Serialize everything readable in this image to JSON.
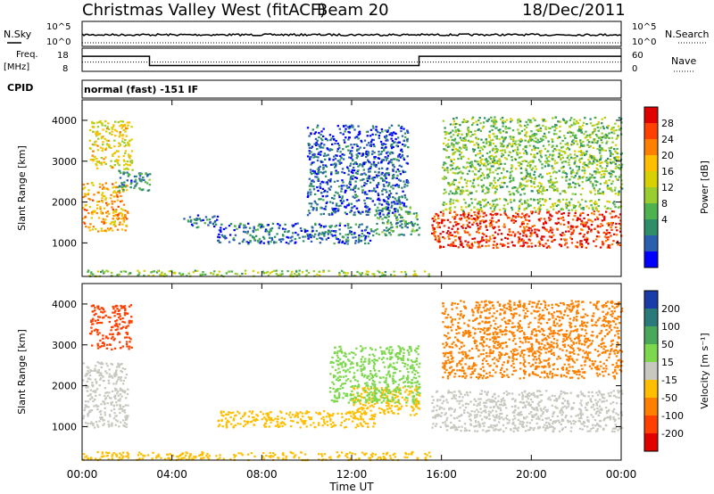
{
  "header": {
    "station": "Christmas Valley West (fitACF)",
    "beam": "Beam 20",
    "date": "18/Dec/2011"
  },
  "strips": {
    "nsky_label": "N.Sky",
    "nsky_ticks": [
      "10^5",
      "10^0"
    ],
    "nsearch_label": "N.Search",
    "nsearch_ticks": [
      "10^5",
      "10^0"
    ],
    "freq_label": "Freq.",
    "freq_unit": "[MHz]",
    "freq_ticks": [
      "18",
      "8"
    ],
    "nave_label": "Nave",
    "nave_ticks": [
      "60",
      "0"
    ],
    "cpid_label": "CPID",
    "cpid_text": "normal (fast) -151 IF"
  },
  "chart_data": [
    {
      "type": "line",
      "panel": "Frequency / Nave",
      "series": [
        {
          "name": "Freq.",
          "x": [
            "00:00",
            "03:00",
            "03:00",
            "15:00",
            "15:00",
            "24:00"
          ],
          "values": [
            14.5,
            14.5,
            10.5,
            10.5,
            14.5,
            14.5
          ]
        },
        {
          "name": "Nave",
          "x": [
            "00:00",
            "24:00"
          ],
          "values": [
            12,
            12
          ]
        }
      ],
      "ylim": [
        8,
        18
      ]
    },
    {
      "type": "heatmap",
      "panel": "Power",
      "xlabel": "",
      "ylabel": "Slant Range [km]",
      "x_ticks": [
        "00:00",
        "04:00",
        "08:00",
        "12:00",
        "16:00",
        "20:00",
        "00:00"
      ],
      "y_ticks": [
        1000,
        2000,
        3000,
        4000
      ],
      "ylim": [
        180,
        4500
      ],
      "colorbar": {
        "label": "Power [dB]",
        "ticks": [
          "28",
          "24",
          "20",
          "16",
          "12",
          "8",
          "4"
        ],
        "colors": [
          "#e00000",
          "#ff4000",
          "#ff8000",
          "#ffbf00",
          "#d8d000",
          "#9ace30",
          "#4fb24f",
          "#2e8e6a",
          "#2a5fb0",
          "#0000ff"
        ]
      },
      "regions": [
        {
          "t0": 0.0,
          "t1": 2.0,
          "r0": 1300,
          "r1": 2500,
          "value": 22
        },
        {
          "t0": 0.3,
          "t1": 2.2,
          "r0": 2800,
          "r1": 4000,
          "value": 18
        },
        {
          "t0": 1.5,
          "t1": 3.0,
          "r0": 2300,
          "r1": 2800,
          "value": 8
        },
        {
          "t0": 4.5,
          "t1": 6.0,
          "r0": 1400,
          "r1": 1700,
          "value": 6
        },
        {
          "t0": 6.0,
          "t1": 13.0,
          "r0": 1000,
          "r1": 1500,
          "value": 6
        },
        {
          "t0": 13.0,
          "t1": 15.0,
          "r0": 1200,
          "r1": 1900,
          "value": 10
        },
        {
          "t0": 10.0,
          "t1": 14.5,
          "r0": 1700,
          "r1": 3900,
          "value": 5
        },
        {
          "t0": 0.0,
          "t1": 15.5,
          "r0": 200,
          "r1": 350,
          "value": 14
        },
        {
          "t0": 15.5,
          "t1": 24.0,
          "r0": 900,
          "r1": 1800,
          "value": 28
        },
        {
          "t0": 16.0,
          "t1": 24.0,
          "r0": 1800,
          "r1": 2100,
          "value": 14
        },
        {
          "t0": 16.0,
          "t1": 24.0,
          "r0": 2200,
          "r1": 4100,
          "value": 13
        }
      ]
    },
    {
      "type": "heatmap",
      "panel": "Velocity",
      "xlabel": "Time UT",
      "ylabel": "Slant Range [km]",
      "x_ticks": [
        "00:00",
        "04:00",
        "08:00",
        "12:00",
        "16:00",
        "20:00",
        "00:00"
      ],
      "y_ticks": [
        1000,
        2000,
        3000,
        4000
      ],
      "ylim": [
        180,
        4500
      ],
      "colorbar": {
        "label": "Velocity [m s⁻¹]",
        "ticks": [
          "200",
          "100",
          "50",
          "15",
          "-15",
          "-50",
          "-100",
          "-200"
        ],
        "colors": [
          "#1a3ca8",
          "#2a7a7a",
          "#4aa85a",
          "#7ed84e",
          "#c8c8c0",
          "#ffbf00",
          "#ff8000",
          "#ff4000",
          "#e00000"
        ]
      },
      "regions": [
        {
          "t0": 0.0,
          "t1": 2.0,
          "r0": 1000,
          "r1": 2600,
          "value": 0
        },
        {
          "t0": 0.3,
          "t1": 2.2,
          "r0": 2900,
          "r1": 4000,
          "value": -150
        },
        {
          "t0": 6.0,
          "t1": 13.0,
          "r0": 1000,
          "r1": 1400,
          "value": -40
        },
        {
          "t0": 12.0,
          "t1": 15.0,
          "r0": 1300,
          "r1": 2000,
          "value": -60
        },
        {
          "t0": 11.0,
          "t1": 15.0,
          "r0": 1600,
          "r1": 3000,
          "value": 60
        },
        {
          "t0": 0.0,
          "t1": 15.5,
          "r0": 200,
          "r1": 400,
          "value": -40
        },
        {
          "t0": 15.5,
          "t1": 24.0,
          "r0": 900,
          "r1": 1900,
          "value": 0
        },
        {
          "t0": 16.0,
          "t1": 24.0,
          "r0": 2200,
          "r1": 4100,
          "value": -120
        }
      ]
    }
  ]
}
